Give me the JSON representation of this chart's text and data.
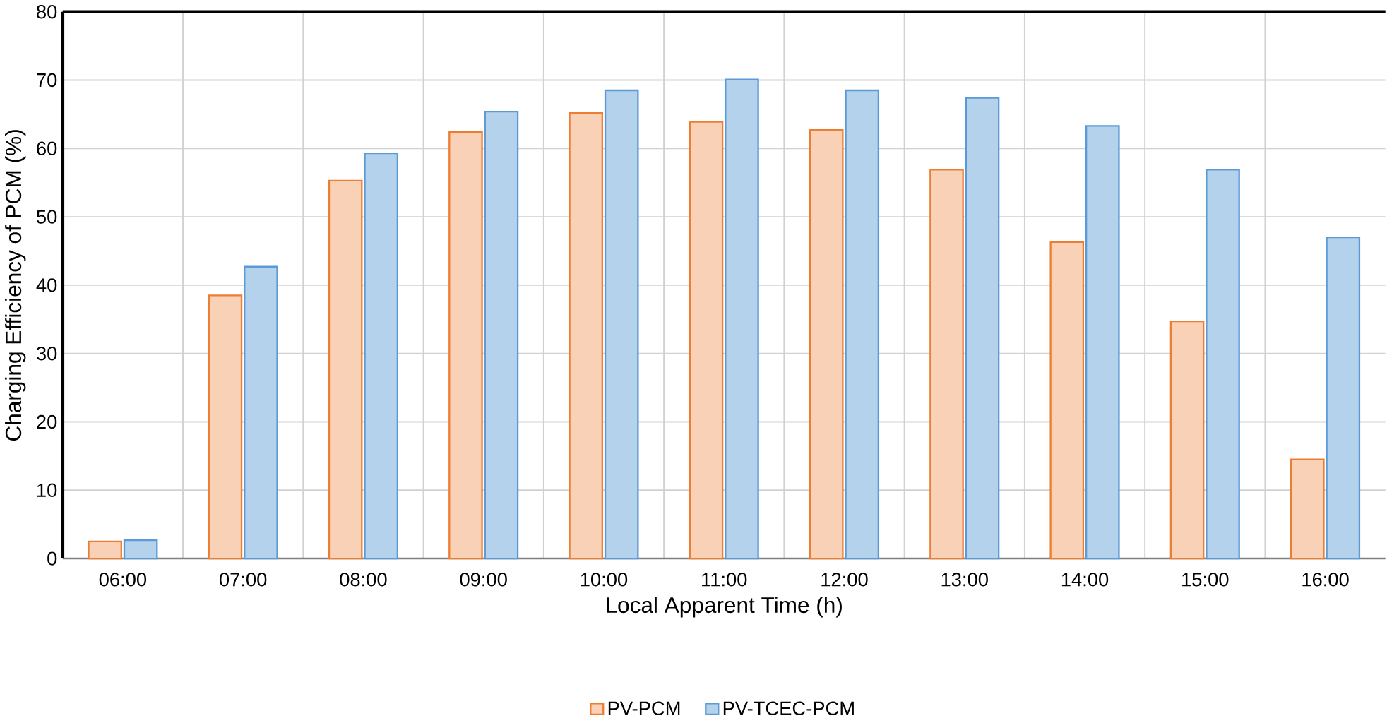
{
  "chart_data": {
    "type": "bar",
    "xlabel": "Local Apparent Time (h)",
    "ylabel": "Charging Efficiency of PCM (%)",
    "categories": [
      "06:00",
      "07:00",
      "08:00",
      "09:00",
      "10:00",
      "11:00",
      "12:00",
      "13:00",
      "14:00",
      "15:00",
      "16:00"
    ],
    "series": [
      {
        "name": "PV-PCM",
        "color": "#ed7d31",
        "values": [
          2.5,
          38.5,
          55.3,
          62.4,
          65.2,
          63.9,
          62.7,
          56.9,
          46.3,
          34.7,
          14.5
        ]
      },
      {
        "name": "PV-TCEC-PCM",
        "color": "#5b9bd5",
        "values": [
          2.7,
          42.7,
          59.3,
          65.4,
          68.5,
          70.1,
          68.5,
          67.4,
          63.3,
          56.9,
          47.0
        ]
      }
    ],
    "ylim": [
      0,
      80
    ],
    "yticks": [
      0,
      10,
      20,
      30,
      40,
      50,
      60,
      70,
      80
    ],
    "grid": true,
    "legend": "bottom"
  }
}
